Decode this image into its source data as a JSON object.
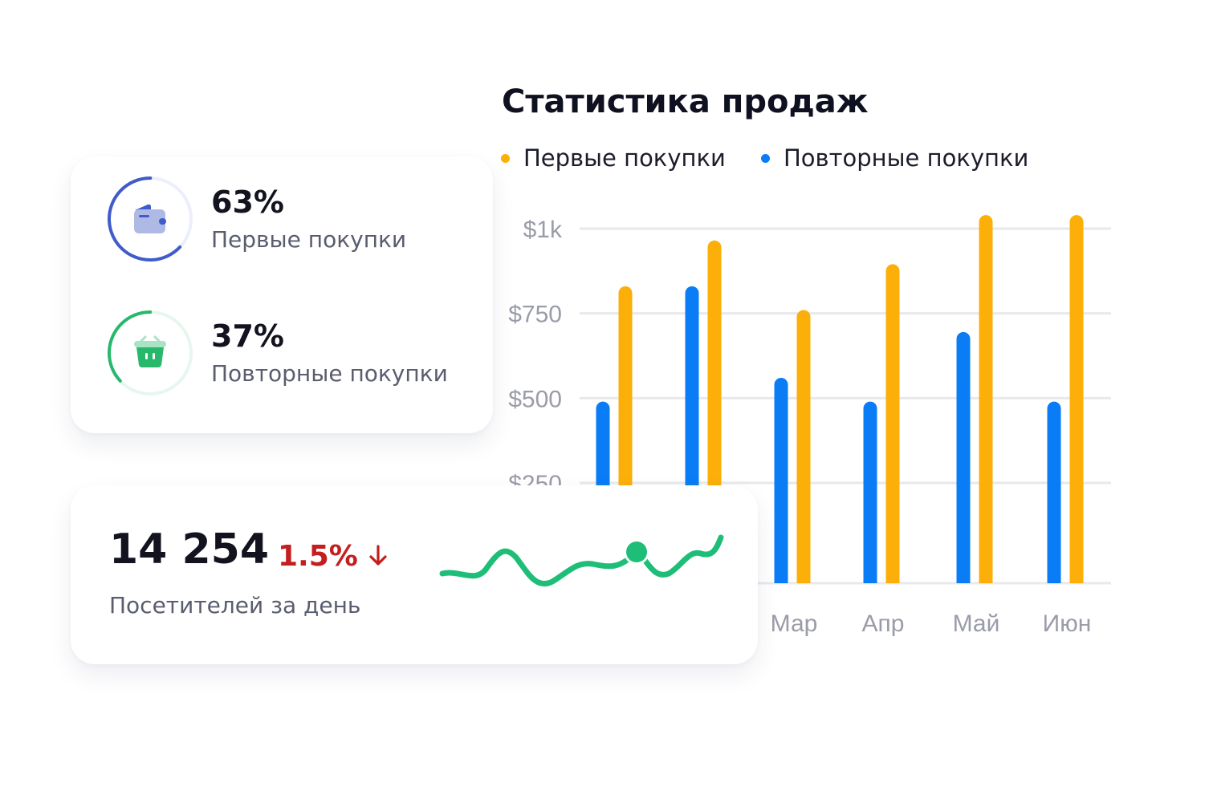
{
  "chart_data": {
    "type": "bar",
    "title": "Статистика продаж",
    "categories": [
      "",
      "",
      "Мар",
      "Апр",
      "Май",
      "Июн"
    ],
    "series": [
      {
        "name": "Первые покупки",
        "color": "#FBAF08",
        "values": [
          830,
          965,
          760,
          895,
          1040,
          1040
        ]
      },
      {
        "name": "Повторные покупки",
        "color": "#0A7CF5",
        "values": [
          490,
          830,
          560,
          490,
          695,
          490
        ]
      }
    ],
    "y_ticks": [
      "$1k",
      "$750",
      "$500",
      "$250"
    ],
    "y_tick_values": [
      1000,
      750,
      500,
      250
    ],
    "ylim": [
      0,
      1000
    ],
    "grid": true,
    "legend": "top-left"
  },
  "stats_card": {
    "items": [
      {
        "percent": "63%",
        "label": "Первые покупки",
        "value": 0.63,
        "color": "#3F5CC9",
        "track": "#ECEFFB",
        "icon": "wallet-icon"
      },
      {
        "percent": "37%",
        "label": "Повторные покупки",
        "value": 0.37,
        "color": "#27B86C",
        "track": "#E6F7EE",
        "icon": "basket-icon"
      }
    ]
  },
  "visitors_card": {
    "value": "14 254",
    "delta": "1.5%",
    "delta_direction": "down",
    "delta_icon": "arrow-down-icon",
    "delta_color": "#C41E1E",
    "label": "Посетителей за день",
    "sparkline_color": "#1FBE78"
  }
}
